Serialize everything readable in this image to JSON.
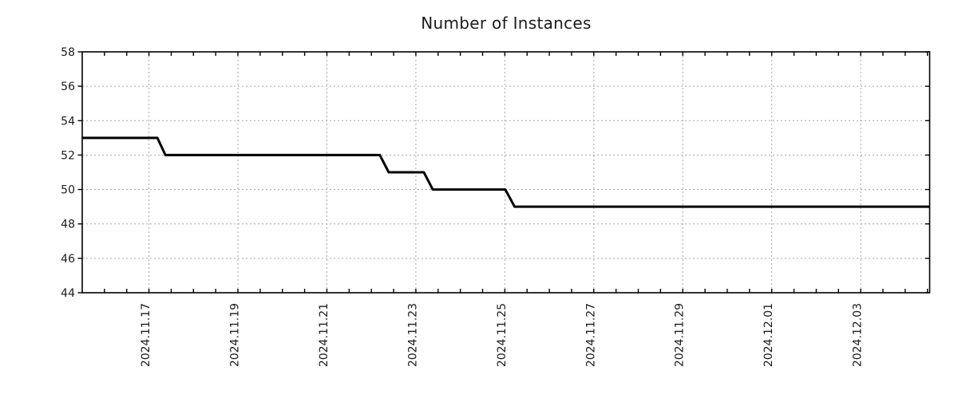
{
  "page": {
    "background_color": "#ffffff"
  },
  "chart_data": {
    "type": "line",
    "subtype": "step",
    "title": "Number of Instances",
    "xlabel": "",
    "ylabel": "",
    "legend": "none",
    "grid": true,
    "grid_style": "dotted",
    "colors": {
      "line": "#000000",
      "grid": "#a6a6a6",
      "axis": "#000000",
      "text": "#1c1c1c",
      "background": "#ffffff"
    },
    "ylim": [
      44,
      58
    ],
    "yticks": [
      44,
      46,
      48,
      50,
      52,
      54,
      56,
      58
    ],
    "x_axis": {
      "unit": "days offset from 2024.11.17",
      "range": [
        -1.5,
        17.55
      ],
      "minor_tick_step_days": 0.5,
      "major_ticks": [
        {
          "day": 0,
          "label": "2024.11.17"
        },
        {
          "day": 2,
          "label": "2024.11.19"
        },
        {
          "day": 4,
          "label": "2024.11.21"
        },
        {
          "day": 6,
          "label": "2024.11.23"
        },
        {
          "day": 8,
          "label": "2024.11.25"
        },
        {
          "day": 10,
          "label": "2024.11.27"
        },
        {
          "day": 12,
          "label": "2024.11.29"
        },
        {
          "day": 14,
          "label": "2024.12.01"
        },
        {
          "day": 16,
          "label": "2024.12.03"
        }
      ]
    },
    "series": [
      {
        "name": "instances",
        "points_day_value": [
          [
            -1.5,
            53
          ],
          [
            0.19,
            53
          ],
          [
            0.37,
            52
          ],
          [
            5.19,
            52
          ],
          [
            5.39,
            51
          ],
          [
            6.18,
            51
          ],
          [
            6.38,
            50
          ],
          [
            8.01,
            50
          ],
          [
            8.22,
            49
          ],
          [
            17.55,
            49
          ]
        ]
      }
    ]
  }
}
